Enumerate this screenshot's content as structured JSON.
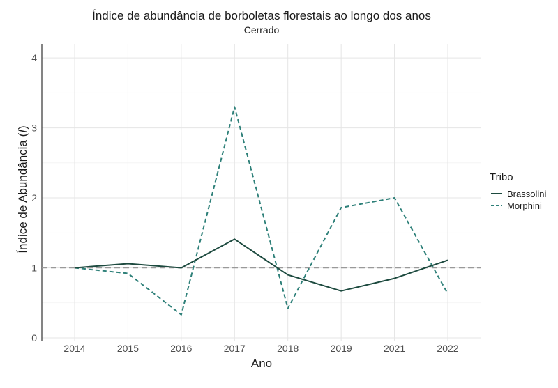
{
  "chart_data": {
    "type": "line",
    "title": "Índice de abundância de borboletas florestais ao longo dos anos",
    "subtitle": "Cerrado",
    "xlabel": "Ano",
    "ylabel": "Índice de Abundância (",
    "ylabel_italic": "I",
    "ylabel_end": ")",
    "categories": [
      "2014",
      "2015",
      "2016",
      "2017",
      "2018",
      "2019",
      "2021",
      "2022"
    ],
    "ylim": [
      -0.05,
      4.2
    ],
    "yticks": [
      0,
      1,
      2,
      3,
      4
    ],
    "reference_line": 1,
    "grid": true,
    "legend": {
      "title": "Tribo",
      "position": "right"
    },
    "series": [
      {
        "name": "Brassolini",
        "color": "#1d4a3f",
        "dash": "solid",
        "values": [
          1.0,
          1.06,
          1.0,
          1.41,
          0.9,
          0.67,
          0.85,
          1.11
        ]
      },
      {
        "name": "Morphini",
        "color": "#2e8079",
        "dash": "dashed",
        "values": [
          1.0,
          0.92,
          0.33,
          3.3,
          0.42,
          1.86,
          2.0,
          0.63
        ]
      }
    ]
  }
}
